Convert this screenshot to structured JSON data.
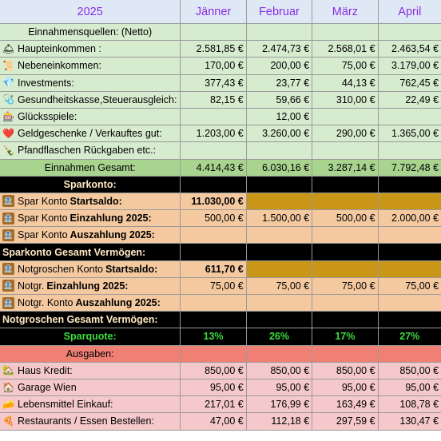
{
  "header": {
    "year": "2025",
    "months": [
      "Jänner",
      "Februar",
      "März",
      "April"
    ]
  },
  "colors": {
    "header_text": "#8a2be2",
    "income_bg": "#d7ebcf",
    "income_total_bg": "#a9d48f",
    "savings_bg": "#f4c9a0",
    "gold": "#c99618",
    "expenses_bg": "#f5c9cb",
    "expenses_header": "#f08074",
    "sparquote_text": "#3ddc3d"
  },
  "income": {
    "title": "Einnahmensquellen: (Netto)",
    "rows": [
      {
        "icon": "bell-icon",
        "glyph": "🛎",
        "label": "Haupteinkommen :",
        "values": [
          "2.581,85 €",
          "2.474,73 €",
          "2.568,01 €",
          "2.463,54 €"
        ]
      },
      {
        "icon": "scroll-icon",
        "glyph": "📜",
        "label": "Nebeneinkommen:",
        "values": [
          "170,00 €",
          "200,00 €",
          "75,00 €",
          "3.179,00 €"
        ]
      },
      {
        "icon": "gem-icon",
        "glyph": "💎",
        "label": "Investments:",
        "values": [
          "377,43 €",
          "23,77 €",
          "44,13 €",
          "762,45 €"
        ]
      },
      {
        "icon": "stethoscope-icon",
        "glyph": "🩺",
        "label": "Gesundheitskasse,Steuerausgleich:",
        "values": [
          "82,15 €",
          "59,66 €",
          "310,00 €",
          "22,49 €"
        ]
      },
      {
        "icon": "casino-icon",
        "glyph": "🎰",
        "label": "Glücksspiele:",
        "values": [
          "",
          "12,00 €",
          "",
          ""
        ]
      },
      {
        "icon": "heart-icon",
        "glyph": "❤️",
        "label": "Geldgeschenke / Verkauftes gut:",
        "values": [
          "1.203,00 €",
          "3.260,00 €",
          "290,00 €",
          "1.365,00 €"
        ]
      },
      {
        "icon": "bottle-icon",
        "glyph": "🍾",
        "label": "Pfandflaschen Rückgaben etc.:",
        "values": [
          "",
          "",
          "",
          ""
        ]
      }
    ],
    "total_label": "Einnahmen Gesamt:",
    "total_values": [
      "4.414,43 €",
      "6.030,16 €",
      "3.287,14 €",
      "7.792,48 €"
    ]
  },
  "sparkonto": {
    "title": "Sparkonto:",
    "rows": [
      {
        "prefix": "Spar Konto",
        "bold": "Startsaldo:",
        "values": [
          "11.030,00 €",
          "",
          "",
          ""
        ],
        "gold": true
      },
      {
        "prefix": "Spar Konto",
        "bold": "Einzahlung 2025:",
        "values": [
          "500,00 €",
          "1.500,00 €",
          "500,00 €",
          "2.000,00 €"
        ],
        "gold": false
      },
      {
        "prefix": "Spar Konto",
        "bold": "Auszahlung 2025:",
        "values": [
          "",
          "",
          "",
          ""
        ],
        "gold": false
      }
    ],
    "total_label": "Sparkonto Gesamt Vermögen:"
  },
  "notgroschen": {
    "rows": [
      {
        "prefix": "Notgroschen Konto",
        "bold": "Startsaldo:",
        "values": [
          "611,70 €",
          "",
          "",
          ""
        ],
        "gold": true
      },
      {
        "prefix": "Notgr.",
        "bold": "Einzahlung 2025:",
        "values": [
          "75,00 €",
          "75,00 €",
          "75,00 €",
          "75,00 €"
        ],
        "gold": false
      },
      {
        "prefix": "Notgr. Konto",
        "bold": "Auszahlung 2025:",
        "values": [
          "",
          "",
          "",
          ""
        ],
        "gold": false
      }
    ],
    "total_label": "Notgroschen Gesamt Vermögen:"
  },
  "sparquote": {
    "label": "Sparquote:",
    "values": [
      "13%",
      "26%",
      "17%",
      "27%"
    ]
  },
  "expenses": {
    "title": "Ausgaben:",
    "rows": [
      {
        "icon": "house-icon",
        "glyph": "🏡",
        "label": "Haus Kredit:",
        "values": [
          "850,00 €",
          "850,00 €",
          "850,00 €",
          "850,00 €"
        ]
      },
      {
        "icon": "garage-icon",
        "glyph": "🏠",
        "label": "Garage Wien",
        "values": [
          "95,00 €",
          "95,00 €",
          "95,00 €",
          "95,00 €"
        ]
      },
      {
        "icon": "cheese-icon",
        "glyph": "🧀",
        "label": "Lebensmittel Einkauf:",
        "values": [
          "217,01 €",
          "176,99 €",
          "163,49 €",
          "108,78 €"
        ]
      },
      {
        "icon": "pizza-icon",
        "glyph": "🍕",
        "label": "Restaurants / Essen Bestellen:",
        "values": [
          "47,00 €",
          "112,18 €",
          "297,59 €",
          "130,47 €"
        ]
      }
    ]
  }
}
